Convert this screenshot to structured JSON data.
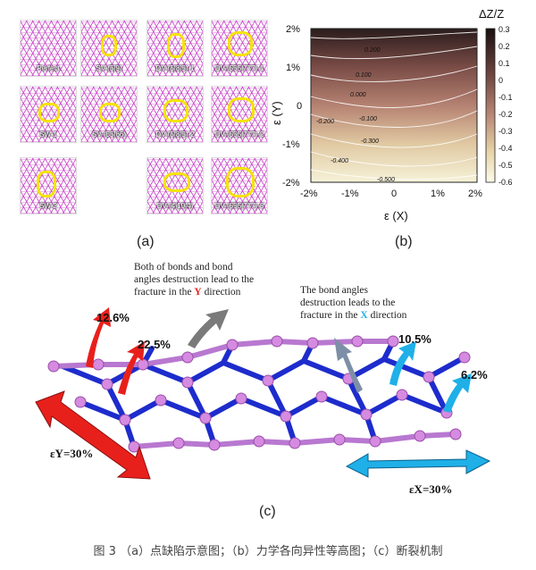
{
  "panel_a": {
    "label": "(a)",
    "defects": [
      {
        "name": "Perfect"
      },
      {
        "name": "SV-(5|9)"
      },
      {
        "name": "DV-(5|8|5)-1"
      },
      {
        "name": "DV-(555|777)-1"
      },
      {
        "name": "SW-1"
      },
      {
        "name": "SV-(55|66)"
      },
      {
        "name": "DV-(5|8|5)-2"
      },
      {
        "name": "DV-(555|777)-2"
      },
      {
        "name": "SW-2"
      },
      {
        "name": "DV-(4|10|4)"
      },
      {
        "name": "DV-(555|777)-3"
      }
    ]
  },
  "panel_b": {
    "label": "(b)",
    "colorbar_title": "ΔZ/Z",
    "colorbar_ticks": [
      "0.3",
      "0.2",
      "0.1",
      "0",
      "-0.1",
      "-0.2",
      "-0.3",
      "-0.4",
      "-0.5",
      "-0.6"
    ],
    "contour_labels": [
      "0.200",
      "0.100",
      "0.000",
      "-0.100",
      "-0.200",
      "-0.300",
      "-0.400",
      "-0.500"
    ],
    "colors": {
      "high": "#2a1a1a",
      "mid": "#a26b60",
      "low": "#f2ecc8"
    }
  },
  "chart_data": {
    "type": "heatmap",
    "xlabel": "ε (X)",
    "ylabel": "ε (Y)",
    "x_ticks": [
      "-2%",
      "-1%",
      "0",
      "1%",
      "2%"
    ],
    "y_ticks": [
      "2%",
      "1%",
      "0",
      "-1%",
      "-2%"
    ],
    "xlim": [
      -2,
      2
    ],
    "ylim": [
      -2,
      2
    ],
    "colorbar_range": [
      -0.6,
      0.3
    ],
    "contours": [
      {
        "level": 0.2
      },
      {
        "level": 0.1
      },
      {
        "level": 0.0
      },
      {
        "level": -0.1
      },
      {
        "level": -0.2
      },
      {
        "level": -0.3
      },
      {
        "level": -0.4
      },
      {
        "level": -0.5
      }
    ]
  },
  "panel_c": {
    "label": "(c)",
    "note_y": [
      "Both of bonds and bond",
      "angles destruction lead to the",
      "fracture in the ",
      "Y",
      " direction"
    ],
    "note_x": [
      "The bond angles",
      "destruction leads to the",
      "fracture in the ",
      "X",
      " direction"
    ],
    "pct_1": "12.6%",
    "pct_2": "22.5%",
    "pct_3": "10.5%",
    "pct_4": "6.2%",
    "strain_y": "εY=30%",
    "strain_x": "εX=30%",
    "colors": {
      "y_arrow": "#e8201c",
      "x_arrow": "#1fb0e8",
      "bond": "#1d2ccc",
      "atom": "#d58be0",
      "grey_arrow": "#7a7a7a"
    }
  },
  "caption": "图 3 （a）点缺陷示意图；（b）力学各向异性等高图；（c）断裂机制"
}
